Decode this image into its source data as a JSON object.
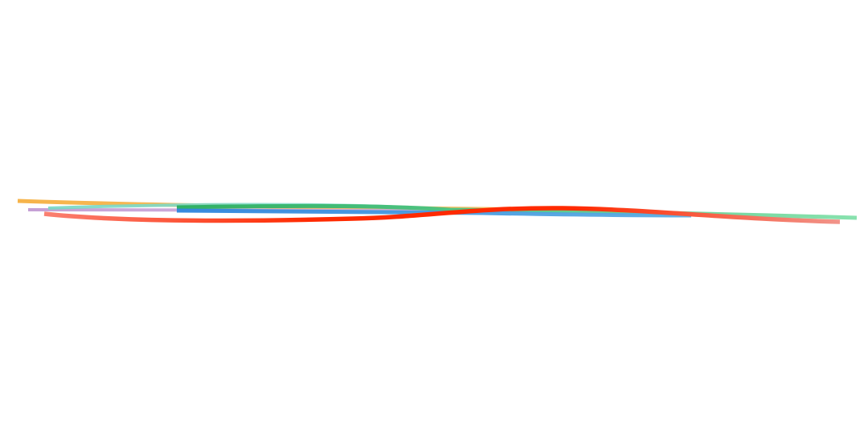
{
  "artwork": {
    "background_color": "#ffffff",
    "strokes": [
      {
        "name": "orange-stroke",
        "colors": [
          "#f5b041",
          "#f8c471"
        ]
      },
      {
        "name": "purple-stroke",
        "colors": [
          "#bb8fce",
          "#d7bde2"
        ]
      },
      {
        "name": "cyan-stroke",
        "colors": [
          "#76d7c4",
          "#a3e4d7"
        ]
      },
      {
        "name": "green-stroke",
        "colors": [
          "#27ae60",
          "#82e0aa"
        ]
      },
      {
        "name": "blue-stroke",
        "colors": [
          "#2e86de",
          "#5dade2"
        ]
      },
      {
        "name": "red-stroke",
        "colors": [
          "#fa8072",
          "#ff2a00",
          "#ff2a00",
          "#f1948a"
        ]
      }
    ]
  }
}
